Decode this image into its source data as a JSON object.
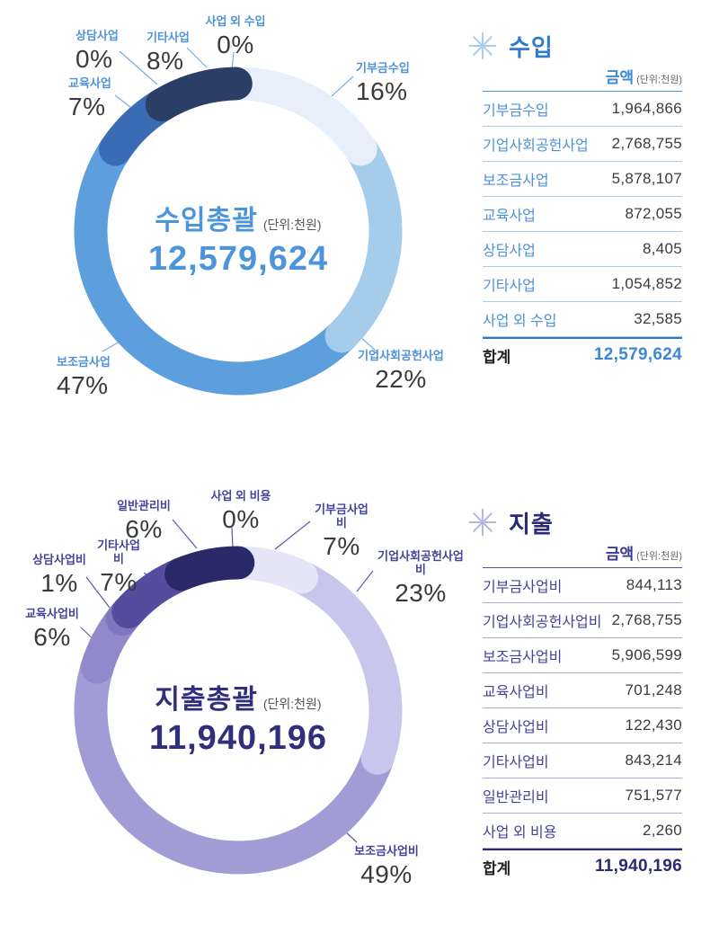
{
  "chart_data": [
    {
      "type": "donut",
      "name": "income-donut",
      "center_title": "수입총괄",
      "center_unit": "(단위:천원)",
      "center_total": "12,579,624",
      "accent": "#4D92DA",
      "slices": [
        {
          "label": "기부금수입",
          "pct": "16%",
          "amount": 1964866,
          "color": "#E7F0FA"
        },
        {
          "label": "기업사회공헌사업",
          "pct": "22%",
          "amount": 2768755,
          "color": "#A6CCEB"
        },
        {
          "label": "보조금사업",
          "pct": "47%",
          "amount": 5878107,
          "color": "#5C9FDC"
        },
        {
          "label": "교육사업",
          "pct": "7%",
          "amount": 872055,
          "color": "#3A6BB5"
        },
        {
          "label": "상담사업",
          "pct": "0%",
          "amount": 8405,
          "color": "#9FC6E8"
        },
        {
          "label": "기타사업",
          "pct": "8%",
          "amount": 1054852,
          "color": "#2A3E66"
        },
        {
          "label": "사업 외 수입",
          "pct": "0%",
          "amount": 32585,
          "color": "#E7F0FA"
        }
      ],
      "paint_order": [
        2,
        1,
        0,
        3,
        4,
        5,
        6
      ]
    },
    {
      "type": "donut",
      "name": "expense-donut",
      "center_title": "지출총괄",
      "center_unit": "(단위:천원)",
      "center_total": "11,940,196",
      "accent": "#45439B",
      "slices": [
        {
          "label": "기부금사업비",
          "pct": "7%",
          "amount": 844113,
          "color": "#E6E5F7"
        },
        {
          "label": "기업사회공헌사업비",
          "pct": "23%",
          "amount": 2768755,
          "color": "#C8C6EC"
        },
        {
          "label": "보조금사업비",
          "pct": "49%",
          "amount": 5906599,
          "color": "#A29CD6"
        },
        {
          "label": "교육사업비",
          "pct": "6%",
          "amount": 701248,
          "color": "#9189CB"
        },
        {
          "label": "상담사업비",
          "pct": "1%",
          "amount": 122430,
          "color": "#7F76BE"
        },
        {
          "label": "기타사업비",
          "pct": "7%",
          "amount": 843214,
          "color": "#534C9F"
        },
        {
          "label": "일반관리비",
          "pct": "6%",
          "amount": 751577,
          "color": "#2B2A68"
        },
        {
          "label": "사업 외 비용",
          "pct": "0%",
          "amount": 2260,
          "color": "#E6E5F7"
        }
      ],
      "paint_order": [
        2,
        1,
        0,
        3,
        4,
        5,
        6,
        7
      ]
    }
  ],
  "tables": [
    {
      "title": "수입",
      "amount_header": "금액",
      "unit": "(단위:천원)",
      "rows": [
        {
          "label": "기부금수입",
          "value": "1,964,866"
        },
        {
          "label": "기업사회공헌사업",
          "value": "2,768,755"
        },
        {
          "label": "보조금사업",
          "value": "5,878,107"
        },
        {
          "label": "교육사업",
          "value": "872,055"
        },
        {
          "label": "상담사업",
          "value": "8,405"
        },
        {
          "label": "기타사업",
          "value": "1,054,852"
        },
        {
          "label": "사업 외 수입",
          "value": "32,585"
        }
      ],
      "total_label": "합계",
      "total_value": "12,579,624"
    },
    {
      "title": "지출",
      "amount_header": "금액",
      "unit": "(단위:천원)",
      "rows": [
        {
          "label": "기부금사업비",
          "value": "844,113"
        },
        {
          "label": "기업사회공헌사업비",
          "value": "2,768,755"
        },
        {
          "label": "보조금사업비",
          "value": "5,906,599"
        },
        {
          "label": "교육사업비",
          "value": "701,248"
        },
        {
          "label": "상담사업비",
          "value": "122,430"
        },
        {
          "label": "기타사업비",
          "value": "843,214"
        },
        {
          "label": "일반관리비",
          "value": "751,577"
        },
        {
          "label": "사업 외 비용",
          "value": "2,260"
        }
      ],
      "total_label": "합계",
      "total_value": "11,940,196"
    }
  ]
}
